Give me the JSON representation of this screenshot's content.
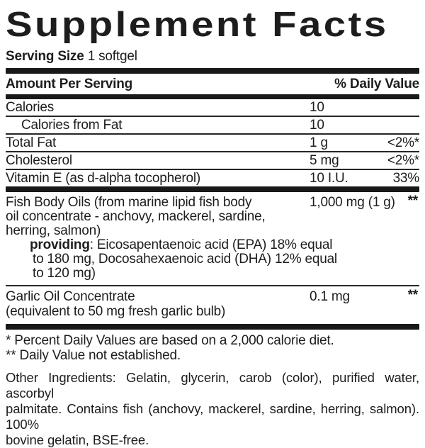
{
  "title": "Supplement Facts",
  "serving": {
    "label": "Serving Size",
    "value": "1 softgel"
  },
  "header": {
    "left": "Amount Per Serving",
    "right": "% Daily Value"
  },
  "rows": [
    {
      "name": "Calories",
      "amount": "10",
      "dv": ""
    },
    {
      "name": "Calories from Fat",
      "amount": "10",
      "dv": ""
    },
    {
      "name": "Total Fat",
      "amount": "1 g",
      "dv": "<2%*"
    },
    {
      "name": "Cholesterol",
      "amount": "5 mg",
      "dv": "<2%*"
    },
    {
      "name": "Vitamin E (as d-alpha tocopherol)",
      "amount": "10 I.U.",
      "dv": "33%"
    }
  ],
  "fish": {
    "lines": [
      "Fish Body Oils (from marine lipid fish body",
      "oil concentrate - anchovy, mackerel, sardine,",
      "herring, salmon)"
    ],
    "amount": "1,000 mg (1 g)",
    "dv": "**",
    "providing_bold": "providing",
    "providing_rest": ": Eicosapentaenoic acid (EPA) 18% equal",
    "providing_lines": [
      "to 180 mg, Docosahexaenoic acid (DHA) 12% equal",
      "to 120 mg)"
    ]
  },
  "garlic": {
    "lines": [
      "Garlic Oil Concentrate",
      "(equivalent to 50 mg fresh garlic bulb)"
    ],
    "amount": "0.1 mg",
    "dv": "**"
  },
  "footnotes": [
    "* Percent Daily Values are based on a 2,000 calorie diet.",
    "** Daily Value not established."
  ],
  "other_ingredients": {
    "lines": [
      "Other Ingredients: Gelatin, glycerin, carob (color), purified water, ascorbyl",
      "palmitate. Contains fish (anchovy, mackerel, sardine, herring, salmon). 100%",
      "bovine gelatin, BSE-free."
    ]
  }
}
